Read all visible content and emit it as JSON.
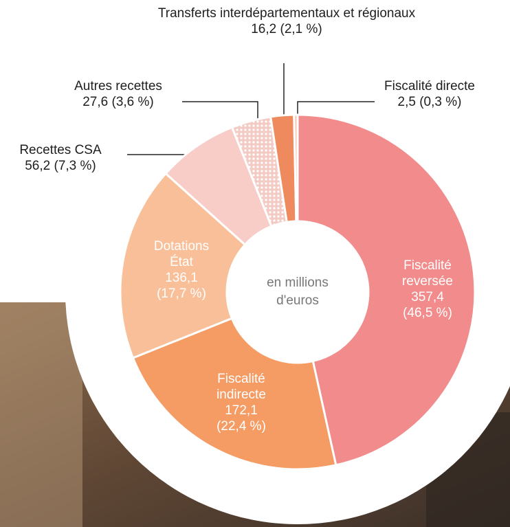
{
  "chart_data": {
    "type": "donut",
    "center_label": "en millions d'euros",
    "categories": [
      "Fiscalité reversée",
      "Fiscalité indirecte",
      "Dotations État",
      "Recettes CSA",
      "Autres recettes",
      "Transferts interdépartementaux et régionaux",
      "Fiscalité directe"
    ],
    "values": [
      357.4,
      172.1,
      136.1,
      56.2,
      27.6,
      16.2,
      2.5
    ],
    "value_labels": [
      "357,4",
      "172,1",
      "136,1",
      "56,2",
      "27,6",
      "16,2",
      "2,5"
    ],
    "percents": [
      46.5,
      22.4,
      17.7,
      7.3,
      3.6,
      2.1,
      0.3
    ],
    "percent_labels": [
      "(46,5 %)",
      "(22,4 %)",
      "(17,7 %)",
      "(7,3 %)",
      "(3,6 %)",
      "(2,1 %)",
      "(0,3 %)"
    ],
    "colors": [
      "#f28b8b",
      "#f49c64",
      "#f9bf98",
      "#f8cdc8",
      "#f7d6d1",
      "#ef8a5e",
      "#f6c7b3"
    ]
  }
}
